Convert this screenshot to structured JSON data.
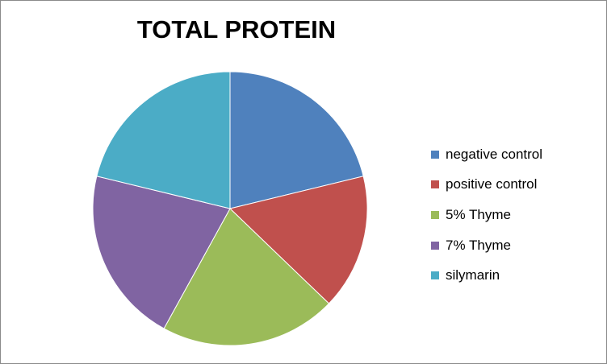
{
  "chart_data": {
    "type": "pie",
    "title": "TOTAL PROTEIN",
    "categories": [
      "negative control",
      "positive control",
      "5% Thyme",
      "7% Thyme",
      "silymarin"
    ],
    "values": [
      21.2,
      16.0,
      20.8,
      20.8,
      21.2
    ],
    "colors": [
      "#4F81BD",
      "#C0504D",
      "#9BBB59",
      "#8064A2",
      "#4BACC6"
    ],
    "start_angle_deg": 0,
    "direction": "clockwise",
    "legend_position": "right"
  }
}
